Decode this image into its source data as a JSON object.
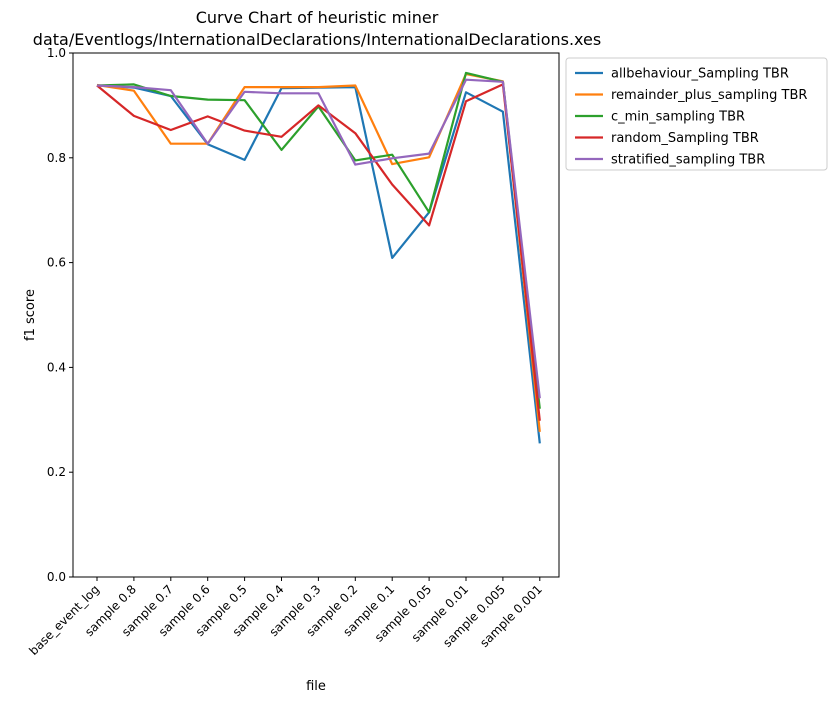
{
  "chart_data": {
    "type": "line",
    "title_lines": [
      "Curve Chart of heuristic miner",
      "data/Eventlogs/InternationalDeclarations/InternationalDeclarations.xes"
    ],
    "xlabel": "file",
    "ylabel": "f1 score",
    "ylim": [
      0.0,
      1.0
    ],
    "yticks": [
      "0.0",
      "0.2",
      "0.4",
      "0.6",
      "0.8",
      "1.0"
    ],
    "categories": [
      "base_event_log",
      "sample 0.8",
      "sample 0.7",
      "sample 0.6",
      "sample 0.5",
      "sample 0.4",
      "sample 0.3",
      "sample 0.2",
      "sample 0.1",
      "sample 0.05",
      "sample 0.01",
      "sample 0.005",
      "sample 0.001"
    ],
    "grid": false,
    "legend_position": "outside-top-right",
    "series": [
      {
        "name": "allbehaviour_Sampling TBR",
        "color": "#1f77b4",
        "values": [
          0.938,
          0.934,
          0.918,
          0.826,
          0.796,
          0.933,
          0.934,
          0.935,
          0.609,
          0.696,
          0.925,
          0.888,
          0.255
        ]
      },
      {
        "name": "remainder_plus_sampling TBR",
        "color": "#ff7f0e",
        "values": [
          0.939,
          0.928,
          0.827,
          0.827,
          0.935,
          0.935,
          0.935,
          0.938,
          0.788,
          0.801,
          0.96,
          0.946,
          0.277
        ]
      },
      {
        "name": "c_min_sampling TBR",
        "color": "#2ca02c",
        "values": [
          0.938,
          0.94,
          0.918,
          0.911,
          0.91,
          0.815,
          0.898,
          0.795,
          0.806,
          0.696,
          0.962,
          0.945,
          0.321
        ]
      },
      {
        "name": "random_Sampling TBR",
        "color": "#d62728",
        "values": [
          0.938,
          0.88,
          0.853,
          0.879,
          0.852,
          0.84,
          0.9,
          0.847,
          0.749,
          0.671,
          0.908,
          0.94,
          0.298
        ]
      },
      {
        "name": "stratified_sampling TBR",
        "color": "#9467bd",
        "values": [
          0.938,
          0.935,
          0.929,
          0.827,
          0.926,
          0.923,
          0.923,
          0.787,
          0.799,
          0.808,
          0.949,
          0.945,
          0.341
        ]
      }
    ]
  }
}
